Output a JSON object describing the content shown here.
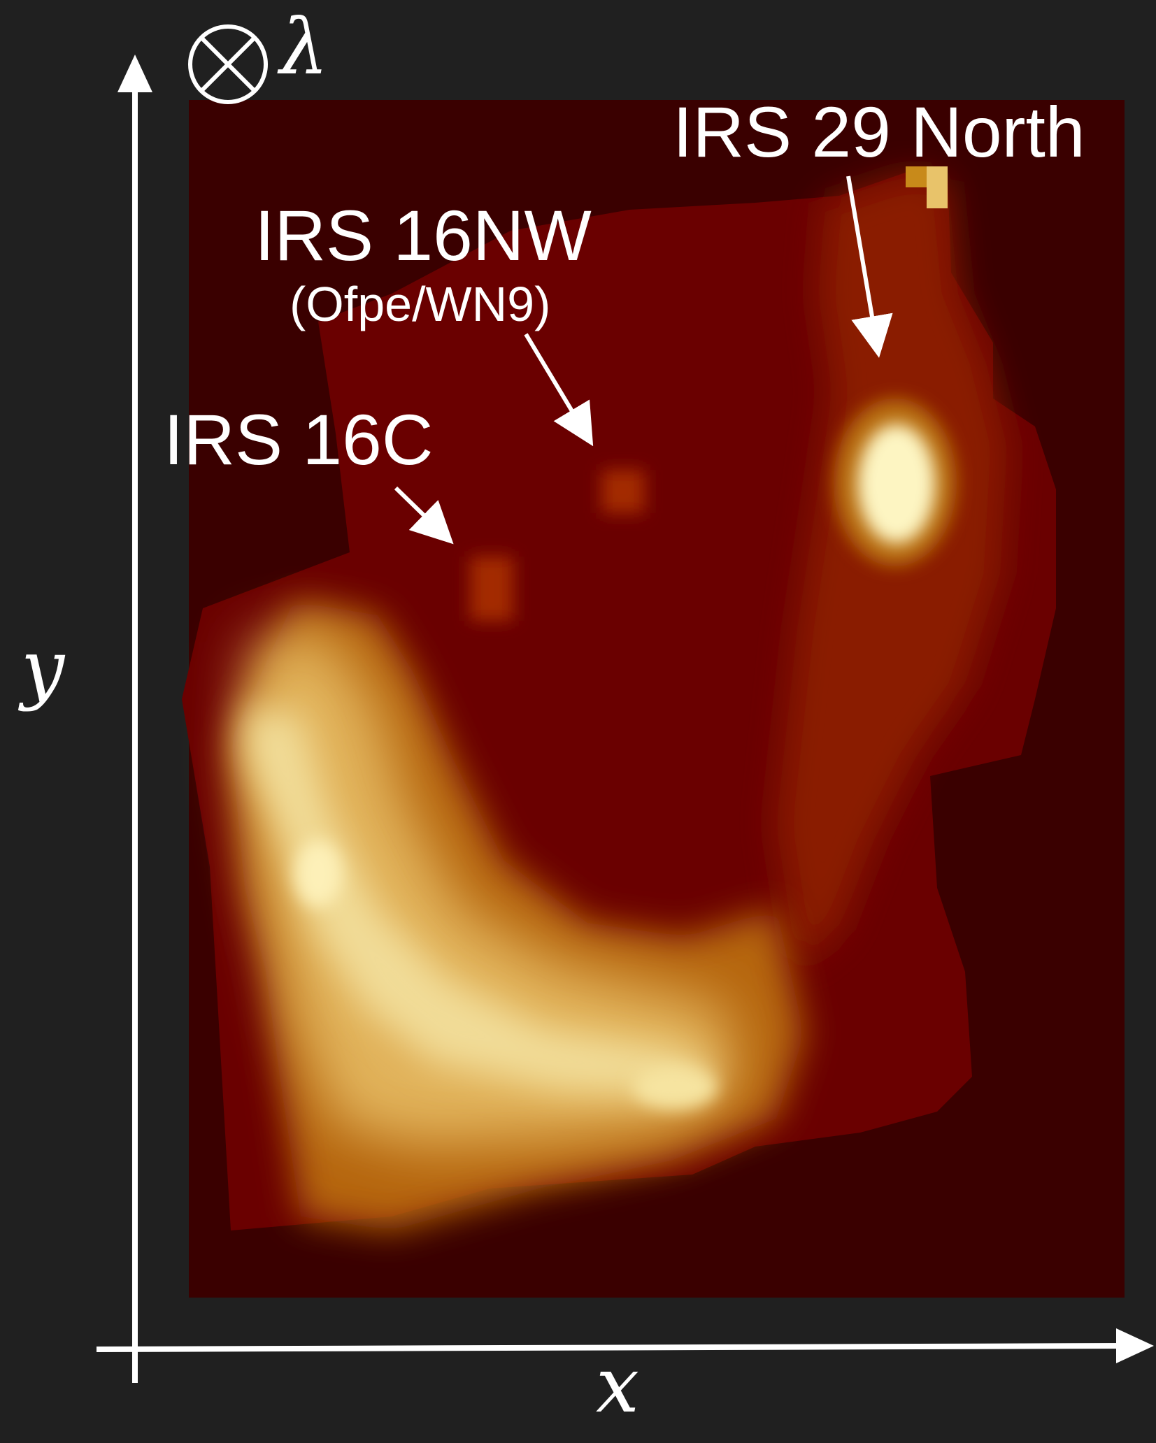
{
  "labels": {
    "irs29": "IRS 29 North",
    "irs16nw": "IRS 16NW",
    "irs16nw_type": "(Ofpe/WN9)",
    "irs16c": "IRS 16C"
  },
  "axes": {
    "x": "x",
    "y": "y",
    "lambda": "λ"
  },
  "colors": {
    "background": "#202020",
    "map_bg": "#3a0000",
    "cmap": [
      "#3a0000",
      "#5c0000",
      "#7d0a00",
      "#9a2a00",
      "#bb6a08",
      "#d8a23a",
      "#ecd07e",
      "#fdf4c4"
    ]
  }
}
